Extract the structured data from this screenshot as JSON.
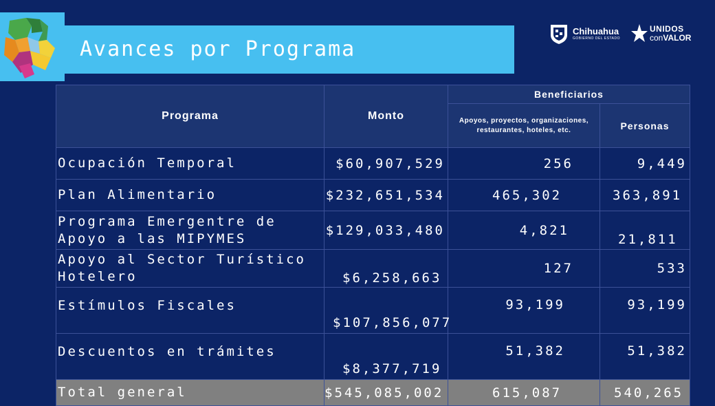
{
  "header": {
    "title": "Avances por Programa",
    "logo_chihuahua": {
      "name": "Chihuahua",
      "tagline": "GOBIERNO DEL ESTADO",
      "icon": "shield-icon"
    },
    "logo_unidos": {
      "line1": "UNIDOS",
      "line2_a": "con",
      "line2_b": "VALOR",
      "icon": "star-icon"
    }
  },
  "table": {
    "headers": {
      "programa": "Programa",
      "monto": "Monto",
      "beneficiarios": "Beneficiarios",
      "apoyos": "Apoyos, proyectos, organizaciones, restaurantes, hoteles, etc.",
      "personas": "Personas"
    },
    "rows": [
      {
        "programa": "Ocupación Temporal",
        "monto": "$60,907,529",
        "apoyos": "256",
        "personas": "9,449"
      },
      {
        "programa": "Plan Alimentario",
        "monto": "$232,651,534",
        "apoyos": "465,302",
        "personas": "363,891"
      },
      {
        "programa": "Programa Emergentre de Apoyo a las MIPYMES",
        "monto": "$129,033,480",
        "apoyos": "4,821",
        "personas": "21,811"
      },
      {
        "programa": "Apoyo al Sector Turístico Hotelero",
        "monto": "$6,258,663",
        "apoyos": "127",
        "personas": "533"
      },
      {
        "programa": "Estímulos Fiscales",
        "monto": "$107,856,077",
        "apoyos": "93,199",
        "personas": "93,199"
      },
      {
        "programa": "Descuentos en trámites",
        "monto": "$8,377,719",
        "apoyos": "51,382",
        "personas": "51,382"
      }
    ],
    "total": {
      "programa": "Total general",
      "monto": "$545,085,002",
      "apoyos": "615,087",
      "personas": "540,265"
    }
  },
  "colors": {
    "background": "#0c2466",
    "accent": "#47bff0",
    "header_cell": "#1c3572",
    "total_row": "#808080"
  }
}
